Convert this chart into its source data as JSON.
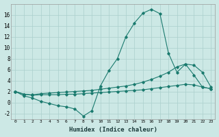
{
  "title": "",
  "xlabel": "Humidex (Indice chaleur)",
  "ylabel": "",
  "bg_color": "#cce8e5",
  "grid_color": "#aacfcc",
  "line_color": "#1a7a6e",
  "x_ticks": [
    0,
    1,
    2,
    3,
    4,
    5,
    6,
    7,
    8,
    9,
    10,
    11,
    12,
    13,
    14,
    15,
    16,
    17,
    18,
    19,
    20,
    21,
    22,
    23
  ],
  "ylim": [
    -3,
    18
  ],
  "xlim": [
    -0.5,
    23.5
  ],
  "yticks": [
    -2,
    0,
    2,
    4,
    6,
    8,
    10,
    12,
    14,
    16
  ],
  "series1": [
    2.0,
    1.2,
    0.8,
    0.2,
    -0.2,
    -0.6,
    -0.8,
    -1.2,
    -2.5,
    -1.5,
    3.0,
    5.8,
    8.0,
    12.0,
    14.5,
    16.3,
    17.0,
    16.2,
    9.0,
    5.5,
    7.0,
    5.0,
    2.8,
    2.5
  ],
  "series2": [
    2.0,
    1.5,
    1.4,
    1.6,
    1.7,
    1.8,
    1.9,
    2.0,
    2.1,
    2.2,
    2.4,
    2.6,
    2.8,
    3.0,
    3.3,
    3.7,
    4.2,
    4.8,
    5.5,
    6.5,
    7.0,
    6.8,
    5.5,
    2.8
  ],
  "series3": [
    2.0,
    1.5,
    1.3,
    1.4,
    1.4,
    1.4,
    1.5,
    1.5,
    1.6,
    1.7,
    1.8,
    1.9,
    2.0,
    2.1,
    2.2,
    2.3,
    2.5,
    2.7,
    2.9,
    3.1,
    3.3,
    3.2,
    2.8,
    2.5
  ]
}
